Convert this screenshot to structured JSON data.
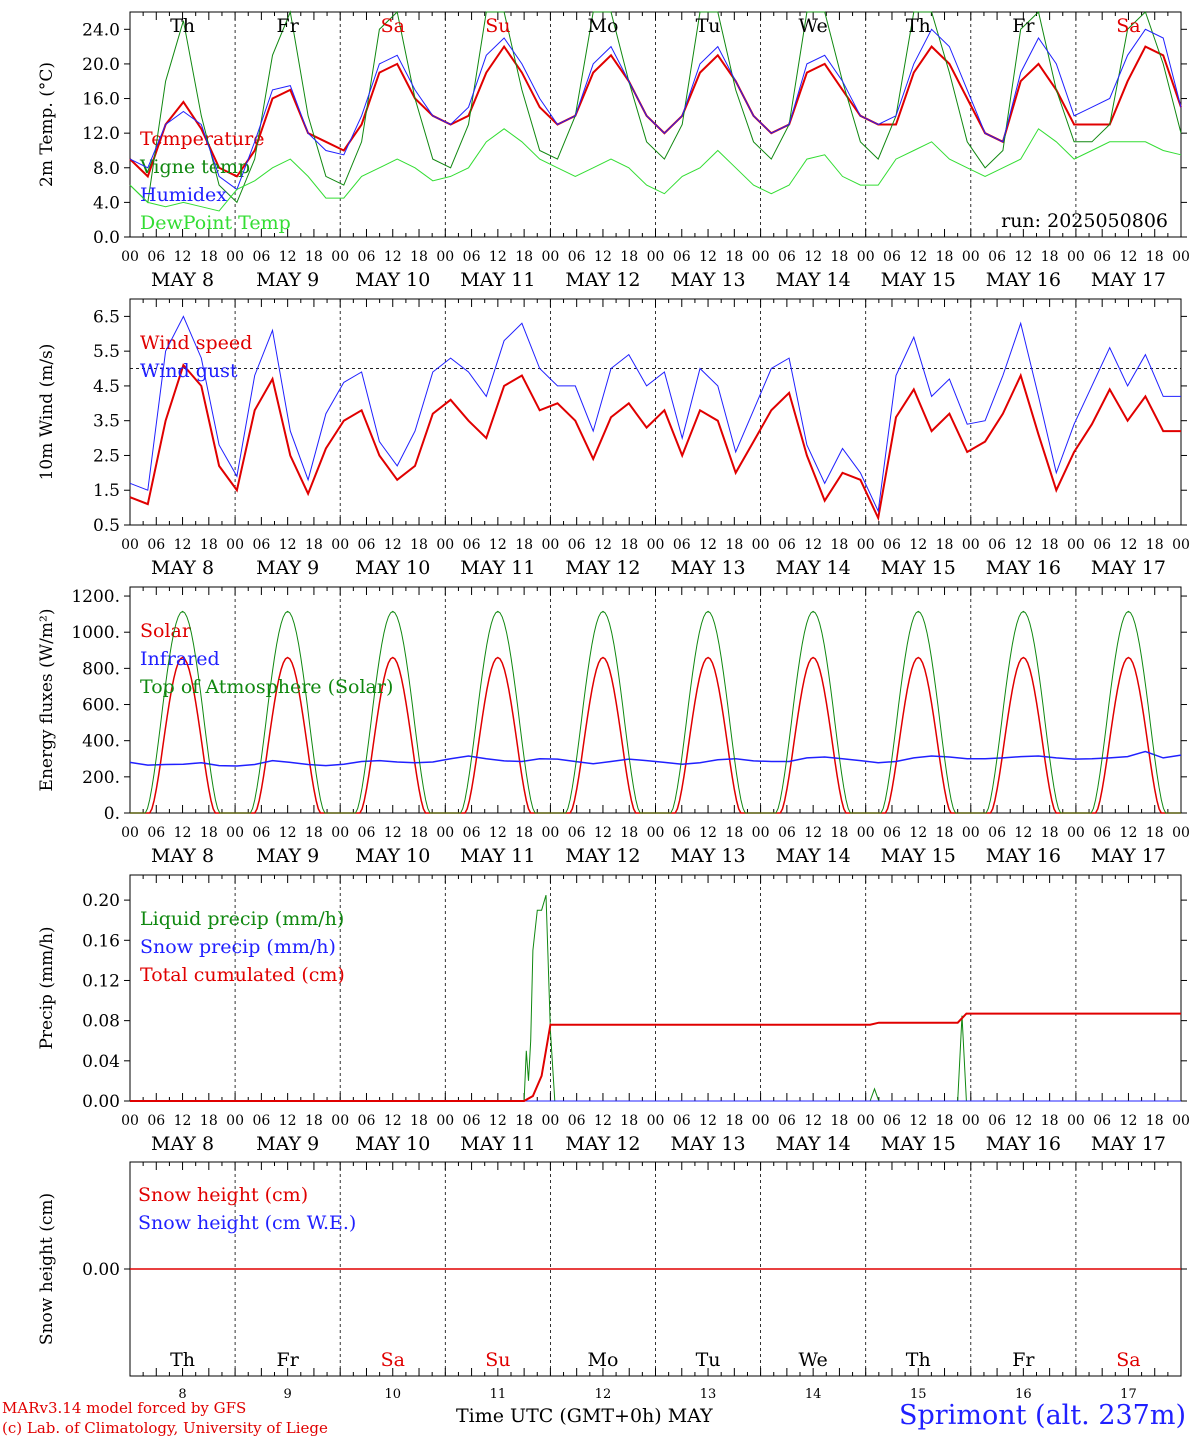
{
  "days": [
    "MAY  8",
    "MAY  9",
    "MAY 10",
    "MAY 11",
    "MAY 12",
    "MAY 13",
    "MAY 14",
    "MAY 15",
    "MAY 16",
    "MAY 17"
  ],
  "hour_ticks": [
    "00",
    "06",
    "12",
    "18"
  ],
  "hour_end": "00",
  "weekdays": [
    {
      "label": "Th",
      "color": "#000000"
    },
    {
      "label": "Fr",
      "color": "#000000"
    },
    {
      "label": "Sa",
      "color": "#e00000"
    },
    {
      "label": "Su",
      "color": "#e00000"
    },
    {
      "label": "Mo",
      "color": "#000000"
    },
    {
      "label": "Tu",
      "color": "#000000"
    },
    {
      "label": "We",
      "color": "#000000"
    },
    {
      "label": "Th",
      "color": "#000000"
    },
    {
      "label": "Fr",
      "color": "#000000"
    },
    {
      "label": "Sa",
      "color": "#e00000"
    }
  ],
  "day_numbers": [
    "8",
    "9",
    "10",
    "11",
    "12",
    "13",
    "14",
    "15",
    "16",
    "17"
  ],
  "run_label": "run: 2025050806",
  "footer": {
    "model": "MARv3.14 model forced by GFS",
    "credit": "(c) Lab. of Climatology, University of Liege",
    "xtitle": "Time UTC (GMT+0h)",
    "month": "MAY",
    "station": "Sprimont (alt. 237m)"
  },
  "chart_data": [
    {
      "type": "line",
      "ylabel": "2m Temp. (°C)",
      "ylim": [
        0,
        26
      ],
      "yticks": [
        "0.0",
        "4.0",
        "8.0",
        "12.0",
        "16.0",
        "20.0",
        "24.0"
      ],
      "ytick_values": [
        0,
        4,
        8,
        12,
        16,
        20,
        24
      ],
      "series": [
        {
          "name": "Temperature",
          "color": "#e00000",
          "width": 2,
          "values": [
            9,
            7,
            13,
            15.6,
            12.5,
            8,
            7,
            10,
            16,
            17,
            12,
            11,
            10,
            13,
            19,
            20,
            16,
            14,
            13,
            14,
            19,
            22,
            19,
            15,
            13,
            14,
            19,
            21,
            18,
            14,
            12,
            14,
            19,
            21,
            18,
            14,
            12,
            13,
            19,
            20,
            17,
            14,
            13,
            13,
            19,
            22,
            20,
            16,
            12,
            11,
            18,
            20,
            17,
            13,
            13,
            13,
            18,
            22,
            21,
            15
          ]
        },
        {
          "name": "Vigne temp",
          "color": "#108810",
          "width": 1,
          "values": [
            6,
            4,
            18,
            25,
            14,
            6,
            4,
            9,
            21,
            28,
            14,
            7,
            6,
            11,
            24,
            29,
            16,
            9,
            8,
            13,
            26,
            30,
            17,
            10,
            9,
            14,
            28,
            30,
            18,
            11,
            9,
            13,
            27,
            29,
            17,
            11,
            9,
            13,
            26,
            30,
            18,
            11,
            9,
            14,
            27,
            30,
            19,
            11,
            8,
            10,
            24,
            29,
            17,
            11,
            11,
            13,
            24,
            29,
            20,
            12
          ]
        },
        {
          "name": "Humidex",
          "color": "#2020ff",
          "width": 1,
          "values": [
            9,
            8,
            13,
            14.5,
            13,
            7,
            5.5,
            11,
            17,
            17.5,
            12,
            10,
            9.5,
            14,
            20,
            21,
            17,
            14,
            13,
            15,
            21,
            23,
            20,
            16,
            13,
            14,
            20,
            22,
            18,
            14,
            12,
            14,
            20,
            22,
            18,
            14,
            12,
            13,
            20,
            21,
            18,
            14,
            13,
            14,
            20,
            24,
            22,
            17,
            12,
            11,
            19,
            23,
            20,
            14,
            15,
            16,
            21,
            24,
            23,
            15
          ]
        },
        {
          "name": "DewPoint Temp",
          "color": "#33dd33",
          "width": 1,
          "values": [
            6,
            4,
            3.5,
            4,
            3.5,
            3,
            5.5,
            6.5,
            8,
            9,
            7,
            4.5,
            4.5,
            7,
            8,
            9,
            8,
            6.5,
            7,
            8,
            11,
            12.5,
            11,
            9,
            8,
            7,
            8,
            9,
            8,
            6,
            5,
            7,
            8,
            10,
            8,
            6,
            5,
            6,
            9,
            9.5,
            7,
            6,
            6,
            9,
            10,
            11,
            9,
            8,
            7,
            8,
            9,
            12.5,
            11,
            9,
            10,
            11,
            11,
            11,
            10,
            9.5
          ]
        }
      ]
    },
    {
      "type": "line",
      "ylabel": "10m Wind (m/s)",
      "ylim": [
        0.5,
        7
      ],
      "yticks": [
        "0.5",
        "1.5",
        "2.5",
        "3.5",
        "4.5",
        "5.5",
        "6.5"
      ],
      "ytick_values": [
        0.5,
        1.5,
        2.5,
        3.5,
        4.5,
        5.5,
        6.5
      ],
      "refline": 5.0,
      "series": [
        {
          "name": "Wind speed",
          "color": "#e00000",
          "width": 2,
          "values": [
            1.3,
            1.1,
            3.5,
            5.1,
            4.5,
            2.2,
            1.5,
            3.8,
            4.7,
            2.5,
            1.4,
            2.7,
            3.5,
            3.8,
            2.5,
            1.8,
            2.2,
            3.7,
            4.1,
            3.5,
            3.0,
            4.5,
            4.8,
            3.8,
            4.0,
            3.5,
            2.4,
            3.6,
            4.0,
            3.3,
            3.8,
            2.5,
            3.8,
            3.5,
            2.0,
            2.9,
            3.8,
            4.3,
            2.5,
            1.2,
            2.0,
            1.8,
            0.7,
            3.6,
            4.4,
            3.2,
            3.7,
            2.6,
            2.9,
            3.7,
            4.8,
            3.1,
            1.5,
            2.6,
            3.4,
            4.4,
            3.5,
            4.2,
            3.2,
            3.2
          ]
        },
        {
          "name": "Wind gust",
          "color": "#2020ff",
          "width": 1,
          "values": [
            1.7,
            1.5,
            5.5,
            6.5,
            5.3,
            2.8,
            1.9,
            4.8,
            6.1,
            3.2,
            1.8,
            3.7,
            4.6,
            4.9,
            2.9,
            2.2,
            3.2,
            4.9,
            5.3,
            4.9,
            4.2,
            5.8,
            6.3,
            5.0,
            4.5,
            4.5,
            3.2,
            5.0,
            5.4,
            4.5,
            4.9,
            3.0,
            5.0,
            4.5,
            2.6,
            3.8,
            5.0,
            5.3,
            2.8,
            1.7,
            2.7,
            2.0,
            0.9,
            4.8,
            5.9,
            4.2,
            4.7,
            3.4,
            3.5,
            4.8,
            6.3,
            4.2,
            2.0,
            3.4,
            4.5,
            5.6,
            4.5,
            5.4,
            4.2,
            4.2
          ]
        }
      ]
    },
    {
      "type": "line",
      "ylabel": "Energy fluxes (W/m²)",
      "ylim": [
        0,
        1250
      ],
      "yticks": [
        "0.",
        "200.",
        "400.",
        "600.",
        "800.",
        "1000.",
        "1200."
      ],
      "ytick_values": [
        0,
        200,
        400,
        600,
        800,
        1000,
        1200
      ],
      "series": [
        {
          "name": "Solar",
          "color": "#e00000",
          "width": 1.5,
          "diurnal": {
            "peak": 860,
            "start": 4.5,
            "end": 19.5
          }
        },
        {
          "name": "Infrared",
          "color": "#2020ff",
          "width": 1.5,
          "values": [
            280,
            265,
            268,
            270,
            278,
            262,
            260,
            268,
            290,
            280,
            268,
            262,
            270,
            285,
            290,
            282,
            278,
            282,
            300,
            315,
            300,
            288,
            285,
            300,
            298,
            285,
            272,
            285,
            298,
            290,
            280,
            270,
            278,
            295,
            300,
            288,
            285,
            285,
            305,
            310,
            300,
            290,
            278,
            285,
            305,
            315,
            310,
            300,
            300,
            305,
            312,
            315,
            305,
            298,
            300,
            305,
            312,
            340,
            305,
            320
          ]
        },
        {
          "name": "Top of Atmosphere (Solar)",
          "color": "#108810",
          "width": 1,
          "diurnal": {
            "peak": 1115,
            "start": 3.5,
            "end": 20.5
          }
        }
      ]
    },
    {
      "type": "line",
      "ylabel": "Precip (mm/h)",
      "ylim": [
        0,
        0.225
      ],
      "yticks": [
        "0.00",
        "0.04",
        "0.08",
        "0.12",
        "0.16",
        "0.20"
      ],
      "ytick_values": [
        0,
        0.04,
        0.08,
        0.12,
        0.16,
        0.2
      ],
      "series": [
        {
          "name": "Liquid precip (mm/h)",
          "color": "#108810",
          "width": 1,
          "points": [
            [
              0,
              0
            ],
            [
              90,
              0
            ],
            [
              90.5,
              0.05
            ],
            [
              91,
              0.02
            ],
            [
              91.5,
              0.06
            ],
            [
              92,
              0.15
            ],
            [
              93,
              0.19
            ],
            [
              94,
              0.19
            ],
            [
              95,
              0.205
            ],
            [
              96,
              0.07
            ],
            [
              97,
              0
            ],
            [
              169,
              0
            ],
            [
              170,
              0.012
            ],
            [
              171,
              0
            ],
            [
              189,
              0
            ],
            [
              190,
              0.085
            ],
            [
              191,
              0
            ],
            [
              240,
              0
            ]
          ]
        },
        {
          "name": "Snow precip (mm/h)",
          "color": "#2020ff",
          "width": 1,
          "points": [
            [
              0,
              0
            ],
            [
              240,
              0
            ]
          ]
        },
        {
          "name": "Total cumulated (cm)",
          "color": "#e00000",
          "width": 2,
          "points": [
            [
              0,
              0
            ],
            [
              90,
              0
            ],
            [
              92,
              0.005
            ],
            [
              94,
              0.025
            ],
            [
              96,
              0.076
            ],
            [
              169,
              0.076
            ],
            [
              171,
              0.078
            ],
            [
              189,
              0.078
            ],
            [
              191,
              0.087
            ],
            [
              240,
              0.087
            ]
          ]
        }
      ]
    },
    {
      "type": "line",
      "ylabel": "Snow height (cm)",
      "ylim": [
        -1,
        1
      ],
      "yticks": [
        "0.00"
      ],
      "ytick_values": [
        0
      ],
      "series": [
        {
          "name": "Snow height (cm)",
          "color": "#e00000",
          "width": 1.5,
          "points": [
            [
              0,
              0
            ],
            [
              240,
              0
            ]
          ]
        },
        {
          "name": "Snow height (cm W.E.)",
          "color": "#2020ff",
          "width": 1.5,
          "points": []
        }
      ]
    }
  ]
}
